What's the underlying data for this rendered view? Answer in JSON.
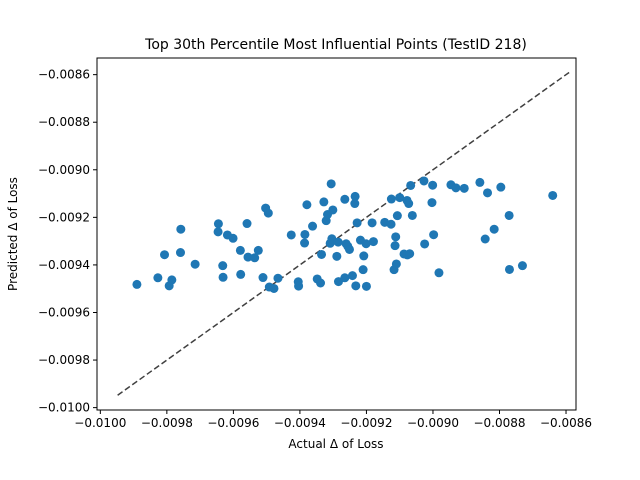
{
  "chart_data": {
    "type": "scatter",
    "title": "Top 30th Percentile Most Influential Points (TestID 218)",
    "xlabel": "Actual Δ of Loss",
    "ylabel": "Predicted Δ of Loss",
    "xlim": [
      -0.01001,
      -0.00857
    ],
    "ylim": [
      -0.01001,
      -0.00853
    ],
    "xticks": [
      -0.01,
      -0.0098,
      -0.0096,
      -0.0094,
      -0.0092,
      -0.009,
      -0.0088,
      -0.0086
    ],
    "xtick_labels": [
      "−0.0100",
      "−0.0098",
      "−0.0096",
      "−0.0094",
      "−0.0092",
      "−0.0090",
      "−0.0088",
      "−0.0086"
    ],
    "yticks": [
      -0.01,
      -0.0098,
      -0.0096,
      -0.0094,
      -0.0092,
      -0.009,
      -0.0088,
      -0.0086
    ],
    "ytick_labels": [
      "−0.0100",
      "−0.0098",
      "−0.0096",
      "−0.0094",
      "−0.0092",
      "−0.0090",
      "−0.0088",
      "−0.0086"
    ],
    "grid": false,
    "colors": {
      "points": "#1f77b4",
      "reference_line": "#404040"
    },
    "reference_line": {
      "style": "dashed",
      "x": [
        -0.009948,
        -0.008588
      ],
      "y": [
        -0.009948,
        -0.008588
      ]
    },
    "points": [
      [
        -0.00989,
        -0.009482
      ],
      [
        -0.009827,
        -0.009454
      ],
      [
        -0.009807,
        -0.009357
      ],
      [
        -0.009793,
        -0.009488
      ],
      [
        -0.009785,
        -0.009463
      ],
      [
        -0.009758,
        -0.00925
      ],
      [
        -0.009759,
        -0.009348
      ],
      [
        -0.009715,
        -0.009397
      ],
      [
        -0.009645,
        -0.009227
      ],
      [
        -0.009646,
        -0.009261
      ],
      [
        -0.009632,
        -0.009403
      ],
      [
        -0.009631,
        -0.009452
      ],
      [
        -0.009618,
        -0.009274
      ],
      [
        -0.009601,
        -0.009288
      ],
      [
        -0.009579,
        -0.009339
      ],
      [
        -0.009578,
        -0.00944
      ],
      [
        -0.009559,
        -0.009226
      ],
      [
        -0.009556,
        -0.009367
      ],
      [
        -0.009536,
        -0.00937
      ],
      [
        -0.009525,
        -0.009339
      ],
      [
        -0.009511,
        -0.009453
      ],
      [
        -0.009503,
        -0.009161
      ],
      [
        -0.009495,
        -0.009182
      ],
      [
        -0.009492,
        -0.009493
      ],
      [
        -0.009478,
        -0.009499
      ],
      [
        -0.009466,
        -0.009456
      ],
      [
        -0.009426,
        -0.009274
      ],
      [
        -0.009405,
        -0.009471
      ],
      [
        -0.009404,
        -0.009489
      ],
      [
        -0.009386,
        -0.009308
      ],
      [
        -0.009385,
        -0.009272
      ],
      [
        -0.009379,
        -0.009147
      ],
      [
        -0.009362,
        -0.009237
      ],
      [
        -0.009348,
        -0.009459
      ],
      [
        -0.009338,
        -0.009476
      ],
      [
        -0.009335,
        -0.009356
      ],
      [
        -0.009328,
        -0.009135
      ],
      [
        -0.009321,
        -0.009214
      ],
      [
        -0.009317,
        -0.009188
      ],
      [
        -0.009309,
        -0.009309
      ],
      [
        -0.009306,
        -0.009059
      ],
      [
        -0.009304,
        -0.00929
      ],
      [
        -0.009301,
        -0.009169
      ],
      [
        -0.009289,
        -0.009364
      ],
      [
        -0.009285,
        -0.009304
      ],
      [
        -0.009284,
        -0.00947
      ],
      [
        -0.009265,
        -0.009124
      ],
      [
        -0.009265,
        -0.009454
      ],
      [
        -0.009261,
        -0.009311
      ],
      [
        -0.009256,
        -0.009322
      ],
      [
        -0.009251,
        -0.009335
      ],
      [
        -0.009242,
        -0.009445
      ],
      [
        -0.009235,
        -0.009142
      ],
      [
        -0.009234,
        -0.009112
      ],
      [
        -0.009232,
        -0.009488
      ],
      [
        -0.009228,
        -0.009223
      ],
      [
        -0.009218,
        -0.009296
      ],
      [
        -0.00921,
        -0.00942
      ],
      [
        -0.009208,
        -0.009362
      ],
      [
        -0.009201,
        -0.009311
      ],
      [
        -0.0092,
        -0.00949
      ],
      [
        -0.009183,
        -0.009223
      ],
      [
        -0.009179,
        -0.009302
      ],
      [
        -0.009145,
        -0.009221
      ],
      [
        -0.009126,
        -0.009229
      ],
      [
        -0.009125,
        -0.009123
      ],
      [
        -0.009117,
        -0.00942
      ],
      [
        -0.009114,
        -0.009319
      ],
      [
        -0.009112,
        -0.009282
      ],
      [
        -0.00911,
        -0.009396
      ],
      [
        -0.009107,
        -0.009193
      ],
      [
        -0.0091,
        -0.009117
      ],
      [
        -0.009087,
        -0.009354
      ],
      [
        -0.009078,
        -0.009129
      ],
      [
        -0.009077,
        -0.009358
      ],
      [
        -0.009073,
        -0.009142
      ],
      [
        -0.00907,
        -0.009353
      ],
      [
        -0.009067,
        -0.009066
      ],
      [
        -0.009062,
        -0.009192
      ],
      [
        -0.009027,
        -0.009047
      ],
      [
        -0.009025,
        -0.009312
      ],
      [
        -0.009003,
        -0.009138
      ],
      [
        -0.009001,
        -0.009065
      ],
      [
        -0.008998,
        -0.009273
      ],
      [
        -0.008982,
        -0.009433
      ],
      [
        -0.008946,
        -0.009063
      ],
      [
        -0.008931,
        -0.009076
      ],
      [
        -0.008906,
        -0.009078
      ],
      [
        -0.008859,
        -0.009053
      ],
      [
        -0.008843,
        -0.009291
      ],
      [
        -0.008836,
        -0.009097
      ],
      [
        -0.008816,
        -0.00925
      ],
      [
        -0.008796,
        -0.009073
      ],
      [
        -0.008771,
        -0.009192
      ],
      [
        -0.00877,
        -0.009419
      ],
      [
        -0.008731,
        -0.009403
      ],
      [
        -0.00864,
        -0.009108
      ]
    ]
  }
}
